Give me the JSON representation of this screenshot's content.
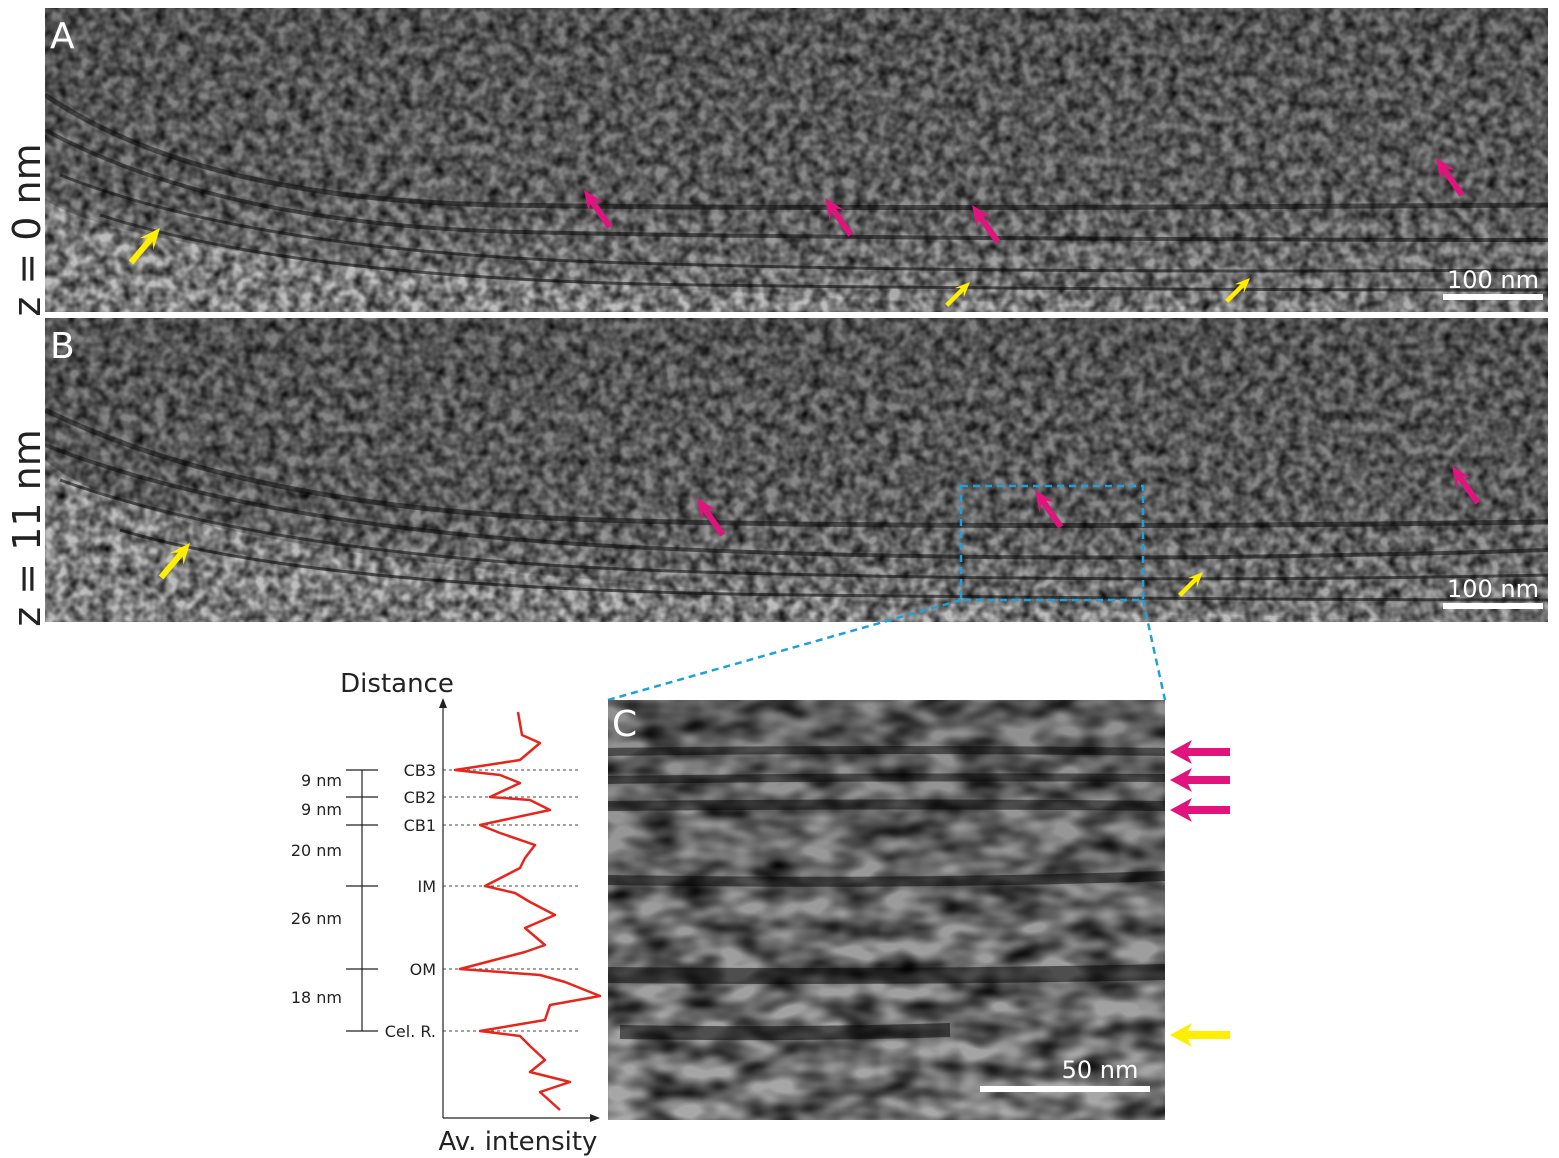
{
  "panels": [
    {
      "label": "A",
      "z_label": "z = 0 nm",
      "scale_bar": "100 nm"
    },
    {
      "label": "B",
      "z_label": "z = 11 nm",
      "scale_bar": "100 nm"
    },
    {
      "label": "C",
      "scale_bar": "50 nm"
    }
  ],
  "profile": {
    "y_axis_label": "Distance",
    "x_axis_label": "Av. intensity",
    "layers": [
      "CB3",
      "CB2",
      "CB1",
      "IM",
      "OM",
      "Cel. R."
    ],
    "spacings": [
      "9 nm",
      "9 nm",
      "20 nm",
      "26 nm",
      "18 nm"
    ]
  }
}
